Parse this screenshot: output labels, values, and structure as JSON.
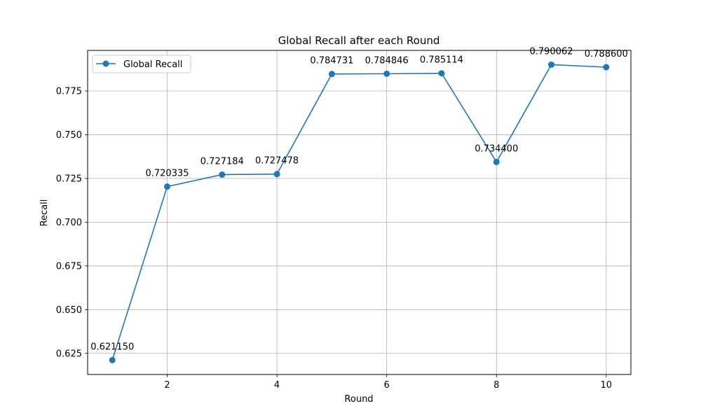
{
  "chart_data": {
    "type": "line",
    "title": "Global Recall after each Round",
    "xlabel": "Round",
    "ylabel": "Recall",
    "xlim": [
      0.55,
      10.45
    ],
    "ylim": [
      0.6129,
      0.7982
    ],
    "xticks": [
      2,
      4,
      6,
      8,
      10
    ],
    "yticks": [
      0.625,
      0.65,
      0.675,
      0.7,
      0.725,
      0.75,
      0.775
    ],
    "ytick_labels": [
      "0.625",
      "0.650",
      "0.675",
      "0.700",
      "0.725",
      "0.750",
      "0.775"
    ],
    "grid": true,
    "legend_position": "top-left",
    "color": "#1f77b4",
    "series": [
      {
        "name": "Global Recall",
        "x": [
          1,
          2,
          3,
          4,
          5,
          6,
          7,
          8,
          9,
          10
        ],
        "y": [
          0.62115,
          0.720335,
          0.727184,
          0.727478,
          0.784731,
          0.784846,
          0.785114,
          0.7344,
          0.790062,
          0.7886
        ],
        "labels": [
          "0.621150",
          "0.720335",
          "0.727184",
          "0.727478",
          "0.784731",
          "0.784846",
          "0.785114",
          "0.734400",
          "0.790062",
          "0.788600"
        ]
      }
    ]
  }
}
